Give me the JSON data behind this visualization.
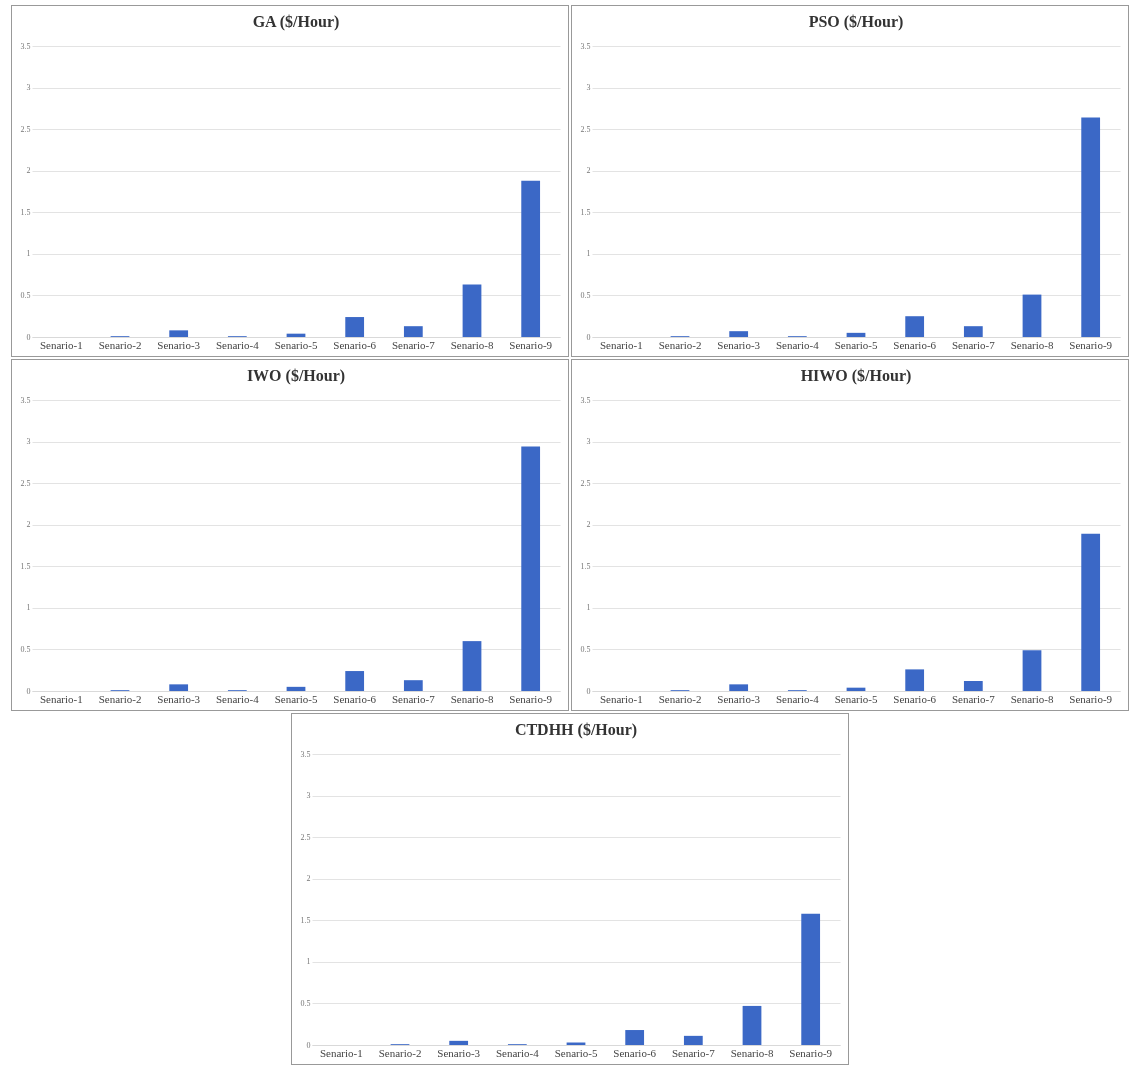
{
  "chart_data": [
    {
      "type": "bar",
      "title": "GA ($/Hour)",
      "categories": [
        "Senario-1",
        "Senario-2",
        "Senario-3",
        "Senario-4",
        "Senario-5",
        "Senario-6",
        "Senario-7",
        "Senario-8",
        "Senario-9"
      ],
      "values": [
        0,
        0.01,
        0.08,
        0.01,
        0.04,
        0.24,
        0.13,
        0.63,
        1.88
      ],
      "color": "#3b68c6",
      "ylim": [
        0,
        3.5
      ],
      "yticks": [
        0,
        0.5,
        1,
        1.5,
        2,
        2.5,
        3,
        3.5
      ],
      "grid": "y"
    },
    {
      "type": "bar",
      "title": "PSO ($/Hour)",
      "categories": [
        "Senario-1",
        "Senario-2",
        "Senario-3",
        "Senario-4",
        "Senario-5",
        "Senario-6",
        "Senario-7",
        "Senario-8",
        "Senario-9"
      ],
      "values": [
        0,
        0.01,
        0.07,
        0.01,
        0.05,
        0.25,
        0.13,
        0.51,
        2.64
      ],
      "color": "#3b68c6",
      "ylim": [
        0,
        3.5
      ],
      "yticks": [
        0,
        0.5,
        1,
        1.5,
        2,
        2.5,
        3,
        3.5
      ],
      "grid": "y"
    },
    {
      "type": "bar",
      "title": "IWO ($/Hour)",
      "categories": [
        "Senario-1",
        "Senario-2",
        "Senario-3",
        "Senario-4",
        "Senario-5",
        "Senario-6",
        "Senario-7",
        "Senario-8",
        "Senario-9"
      ],
      "values": [
        0,
        0.01,
        0.08,
        0.01,
        0.05,
        0.24,
        0.13,
        0.6,
        2.94
      ],
      "color": "#3b68c6",
      "ylim": [
        0,
        3.5
      ],
      "yticks": [
        0,
        0.5,
        1,
        1.5,
        2,
        2.5,
        3,
        3.5
      ],
      "grid": "y"
    },
    {
      "type": "bar",
      "title": "HIWO ($/Hour)",
      "categories": [
        "Senario-1",
        "Senario-2",
        "Senario-3",
        "Senario-4",
        "Senario-5",
        "Senario-6",
        "Senario-7",
        "Senario-8",
        "Senario-9"
      ],
      "values": [
        0,
        0.01,
        0.08,
        0.01,
        0.04,
        0.26,
        0.12,
        0.49,
        1.89
      ],
      "color": "#3b68c6",
      "ylim": [
        0,
        3.5
      ],
      "yticks": [
        0,
        0.5,
        1,
        1.5,
        2,
        2.5,
        3,
        3.5
      ],
      "grid": "y"
    },
    {
      "type": "bar",
      "title": "CTDHH ($/Hour)",
      "categories": [
        "Senario-1",
        "Senario-2",
        "Senario-3",
        "Senario-4",
        "Senario-5",
        "Senario-6",
        "Senario-7",
        "Senario-8",
        "Senario-9"
      ],
      "values": [
        0,
        0.01,
        0.05,
        0.01,
        0.03,
        0.18,
        0.11,
        0.47,
        1.58
      ],
      "color": "#3b68c6",
      "ylim": [
        0,
        3.5
      ],
      "yticks": [
        0,
        0.5,
        1,
        1.5,
        2,
        2.5,
        3,
        3.5
      ],
      "grid": "y"
    }
  ]
}
